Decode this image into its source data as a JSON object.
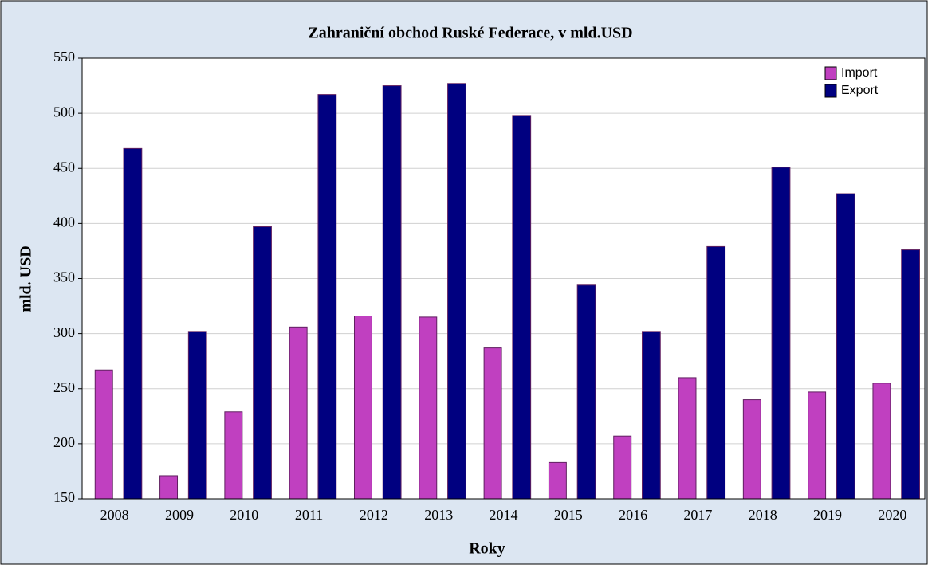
{
  "chart_data": {
    "type": "bar",
    "title": "Zahraniční obchod Ruské Federace, v mld.USD",
    "x_label": "Roky",
    "y_label": "mld. USD",
    "categories": [
      "2008",
      "2009",
      "2010",
      "2011",
      "2012",
      "2013",
      "2014",
      "2015",
      "2016",
      "2017",
      "2018",
      "2019",
      "2020"
    ],
    "series": [
      {
        "name": "Import",
        "color": "#c040c0",
        "values": [
          267,
          171,
          229,
          306,
          316,
          315,
          287,
          183,
          207,
          260,
          240,
          247,
          255
        ]
      },
      {
        "name": "Export",
        "color": "#000080",
        "values": [
          468,
          302,
          397,
          517,
          525,
          527,
          498,
          344,
          302,
          379,
          451,
          427,
          376
        ]
      }
    ],
    "ylim": [
      150,
      550
    ],
    "yticks": [
      150,
      200,
      250,
      300,
      350,
      400,
      450,
      500,
      550
    ],
    "grid": true,
    "legend": "top-right"
  }
}
